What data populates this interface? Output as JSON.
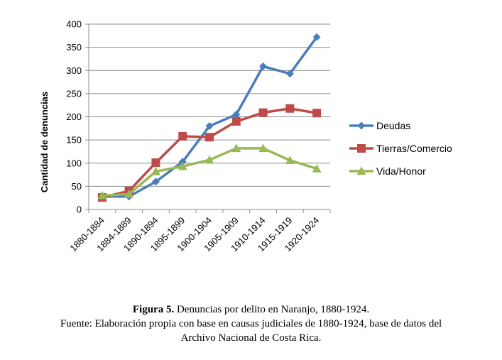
{
  "chart_data": {
    "type": "line",
    "title": "",
    "xlabel": "",
    "ylabel": "Cantidad de denuncias",
    "categories": [
      "1880-1884",
      "1884-1889",
      "1890-1894",
      "1895-1899",
      "1900-1904",
      "1905-1909",
      "1910-1914",
      "1915-1919",
      "1920-1924"
    ],
    "ylim": [
      0,
      400
    ],
    "yticks": [
      0,
      50,
      100,
      150,
      200,
      250,
      300,
      350,
      400
    ],
    "grid": true,
    "legend_position": "right",
    "series": [
      {
        "name": "Deudas",
        "color": "#4a7ebb",
        "marker": "diamond",
        "values": [
          28,
          28,
          60,
          103,
          180,
          205,
          309,
          293,
          372
        ]
      },
      {
        "name": "Tierras/Comercio",
        "color": "#be4b48",
        "marker": "square",
        "values": [
          26,
          40,
          101,
          158,
          156,
          190,
          209,
          218,
          208
        ]
      },
      {
        "name": "Vida/Honor",
        "color": "#98b954",
        "marker": "triangle",
        "values": [
          30,
          33,
          82,
          93,
          107,
          132,
          132,
          106,
          88
        ]
      }
    ]
  },
  "caption": {
    "figure_label": "Figura 5.",
    "figure_title": "Denuncias por delito en Naranjo, 1880-1924.",
    "source_line1": "Fuente: Elaboración propia con base en causas judiciales de 1880-1924, base de datos del",
    "source_line2": "Archivo Nacional de Costa Rica."
  }
}
